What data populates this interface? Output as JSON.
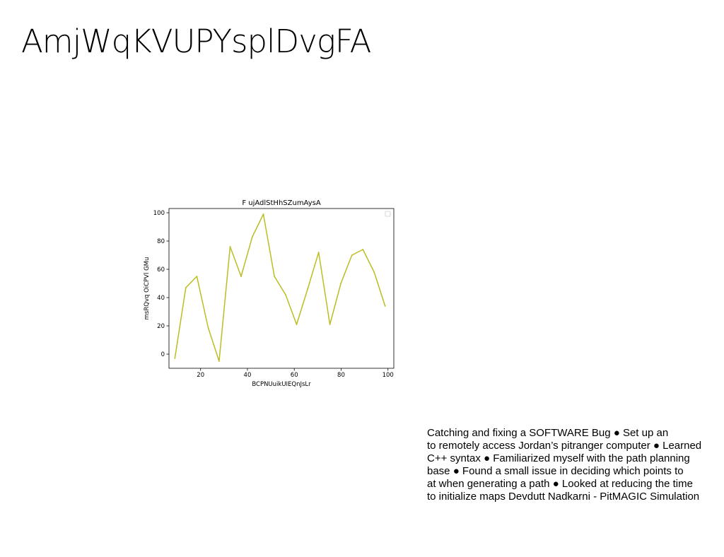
{
  "slide": {
    "title": "AmjWqKVUPYsplDvgFA",
    "body_lines": [
      "Catching and fixing a SOFTWARE Bug ● Set up an",
      "to remotely access Jordan’s pitranger computer ● Learned",
      "C++ syntax ● Familiarized myself with the path planning",
      "base ● Found a small issue in deciding which points to",
      "at when generating a path ● Looked at reducing the time",
      "to initialize maps Devdutt Nadkarni - PitMAGIC Simulation"
    ]
  },
  "chart_data": {
    "type": "line",
    "title": "F ujAdlStHhSZumAysA",
    "xlabel": "BCPNUuikUIEQnJsLr",
    "ylabel": "msRQvq OiCPVl GMu",
    "xlim": [
      6.5,
      102.5
    ],
    "ylim": [
      -10,
      103
    ],
    "xticks": [
      20,
      40,
      60,
      80,
      100
    ],
    "yticks": [
      0,
      20,
      40,
      60,
      80,
      100
    ],
    "grid": false,
    "legend": "top-right, empty",
    "series": [
      {
        "color": "#bcbd22",
        "x": [
          9.0,
          13.7,
          18.4,
          23.2,
          27.9,
          32.6,
          37.3,
          42.1,
          46.8,
          51.5,
          56.3,
          61.0,
          65.7,
          70.4,
          75.2,
          79.9,
          84.6,
          89.3,
          94.1,
          98.8
        ],
        "y": [
          -3,
          47,
          55,
          19,
          -5,
          76,
          55,
          83,
          99,
          55,
          42,
          21,
          46,
          72,
          21,
          50,
          70,
          74,
          58,
          34
        ]
      }
    ]
  }
}
